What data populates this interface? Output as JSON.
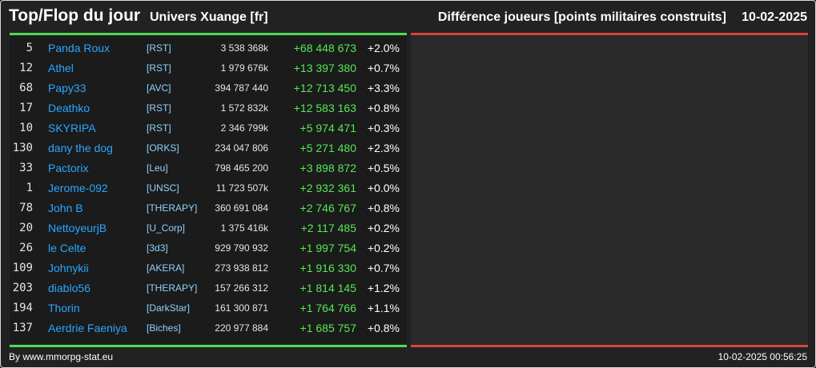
{
  "header": {
    "title": "Top/Flop du jour",
    "universe": "Univers Xuange [fr]",
    "subtitle": "Différence joueurs [points militaires construits]",
    "date": "10-02-2025"
  },
  "colors": {
    "top": "#4fd94f",
    "flop": "#d8463b",
    "player": "#2aa6ff",
    "alliance": "#8fd2ff"
  },
  "top_rows": [
    {
      "rank": "5",
      "name": "Panda Roux",
      "alliance": "[RST]",
      "points": "3 538 368k",
      "diff": "+68 448 673",
      "pct": "+2.0%"
    },
    {
      "rank": "12",
      "name": "Athel",
      "alliance": "[RST]",
      "points": "1 979 676k",
      "diff": "+13 397 380",
      "pct": "+0.7%"
    },
    {
      "rank": "68",
      "name": "Papy33",
      "alliance": "[AVC]",
      "points": "394 787 440",
      "diff": "+12 713 450",
      "pct": "+3.3%"
    },
    {
      "rank": "17",
      "name": "Deathko",
      "alliance": "[RST]",
      "points": "1 572 832k",
      "diff": "+12 583 163",
      "pct": "+0.8%"
    },
    {
      "rank": "10",
      "name": "SKYRIPA",
      "alliance": "[RST]",
      "points": "2 346 799k",
      "diff": "+5 974 471",
      "pct": "+0.3%"
    },
    {
      "rank": "130",
      "name": "dany the dog",
      "alliance": "[ORKS]",
      "points": "234 047 806",
      "diff": "+5 271 480",
      "pct": "+2.3%"
    },
    {
      "rank": "33",
      "name": "Pactorix",
      "alliance": "[Leu]",
      "points": "798 465 200",
      "diff": "+3 898 872",
      "pct": "+0.5%"
    },
    {
      "rank": "1",
      "name": "Jerome-092",
      "alliance": "[UNSC]",
      "points": "11 723 507k",
      "diff": "+2 932 361",
      "pct": "+0.0%"
    },
    {
      "rank": "78",
      "name": "John B",
      "alliance": "[THERAPY]",
      "points": "360 691 084",
      "diff": "+2 746 767",
      "pct": "+0.8%"
    },
    {
      "rank": "20",
      "name": "NettoyeurjB",
      "alliance": "[U_Corp]",
      "points": "1 375 416k",
      "diff": "+2 117 485",
      "pct": "+0.2%"
    },
    {
      "rank": "26",
      "name": "le Celte",
      "alliance": "[3d3]",
      "points": "929 790 932",
      "diff": "+1 997 754",
      "pct": "+0.2%"
    },
    {
      "rank": "109",
      "name": "Johnykii",
      "alliance": "[AKERA]",
      "points": "273 938 812",
      "diff": "+1 916 330",
      "pct": "+0.7%"
    },
    {
      "rank": "203",
      "name": "diablo56",
      "alliance": "[THERAPY]",
      "points": "157 266 312",
      "diff": "+1 814 145",
      "pct": "+1.2%"
    },
    {
      "rank": "194",
      "name": "Thorin",
      "alliance": "[DarkStar]",
      "points": "161 300 871",
      "diff": "+1 764 766",
      "pct": "+1.1%"
    },
    {
      "rank": "137",
      "name": "Aerdrie Faeniya",
      "alliance": "[Biches]",
      "points": "220 977 884",
      "diff": "+1 685 757",
      "pct": "+0.8%"
    }
  ],
  "footer": {
    "credit": "By www.mmorpg-stat.eu",
    "timestamp": "10-02-2025 00:56:25"
  }
}
